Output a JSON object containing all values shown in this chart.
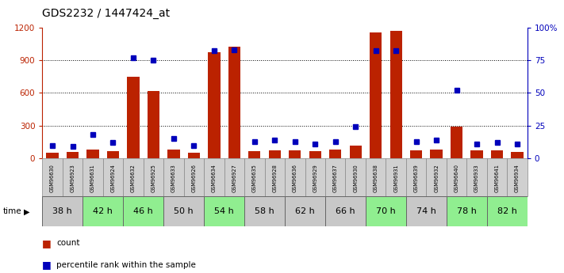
{
  "title": "GDS2232 / 1447424_at",
  "samples": [
    "GSM96630",
    "GSM96923",
    "GSM96631",
    "GSM96924",
    "GSM96632",
    "GSM96925",
    "GSM96633",
    "GSM96926",
    "GSM96634",
    "GSM96927",
    "GSM96635",
    "GSM96928",
    "GSM96636",
    "GSM96929",
    "GSM96637",
    "GSM96930",
    "GSM96638",
    "GSM96931",
    "GSM96639",
    "GSM96932",
    "GSM96640",
    "GSM96933",
    "GSM96641",
    "GSM96934"
  ],
  "time_groups": [
    {
      "label": "38 h",
      "indices": [
        0,
        1
      ],
      "color": "#c8c8c8"
    },
    {
      "label": "42 h",
      "indices": [
        2,
        3
      ],
      "color": "#90ee90"
    },
    {
      "label": "46 h",
      "indices": [
        4,
        5
      ],
      "color": "#90ee90"
    },
    {
      "label": "50 h",
      "indices": [
        6,
        7
      ],
      "color": "#c8c8c8"
    },
    {
      "label": "54 h",
      "indices": [
        8,
        9
      ],
      "color": "#90ee90"
    },
    {
      "label": "58 h",
      "indices": [
        10,
        11
      ],
      "color": "#c8c8c8"
    },
    {
      "label": "62 h",
      "indices": [
        12,
        13
      ],
      "color": "#c8c8c8"
    },
    {
      "label": "66 h",
      "indices": [
        14,
        15
      ],
      "color": "#c8c8c8"
    },
    {
      "label": "70 h",
      "indices": [
        16,
        17
      ],
      "color": "#90ee90"
    },
    {
      "label": "74 h",
      "indices": [
        18,
        19
      ],
      "color": "#c8c8c8"
    },
    {
      "label": "78 h",
      "indices": [
        20,
        21
      ],
      "color": "#90ee90"
    },
    {
      "label": "82 h",
      "indices": [
        22,
        23
      ],
      "color": "#90ee90"
    }
  ],
  "count_values": [
    55,
    60,
    80,
    65,
    750,
    620,
    80,
    55,
    970,
    1020,
    65,
    75,
    70,
    65,
    80,
    120,
    1150,
    1170,
    75,
    80,
    290,
    75,
    70,
    60
  ],
  "percentile_values": [
    10,
    9,
    18,
    12,
    77,
    75,
    15,
    10,
    82,
    83,
    13,
    14,
    13,
    11,
    13,
    24,
    82,
    82,
    13,
    14,
    52,
    11,
    12,
    11
  ],
  "ylim_left": [
    0,
    1200
  ],
  "ylim_right": [
    0,
    100
  ],
  "yticks_left": [
    0,
    300,
    600,
    900,
    1200
  ],
  "yticks_right": [
    0,
    25,
    50,
    75,
    100
  ],
  "bar_color": "#bb2200",
  "dot_color": "#0000bb",
  "bg_color": "#ffffff"
}
